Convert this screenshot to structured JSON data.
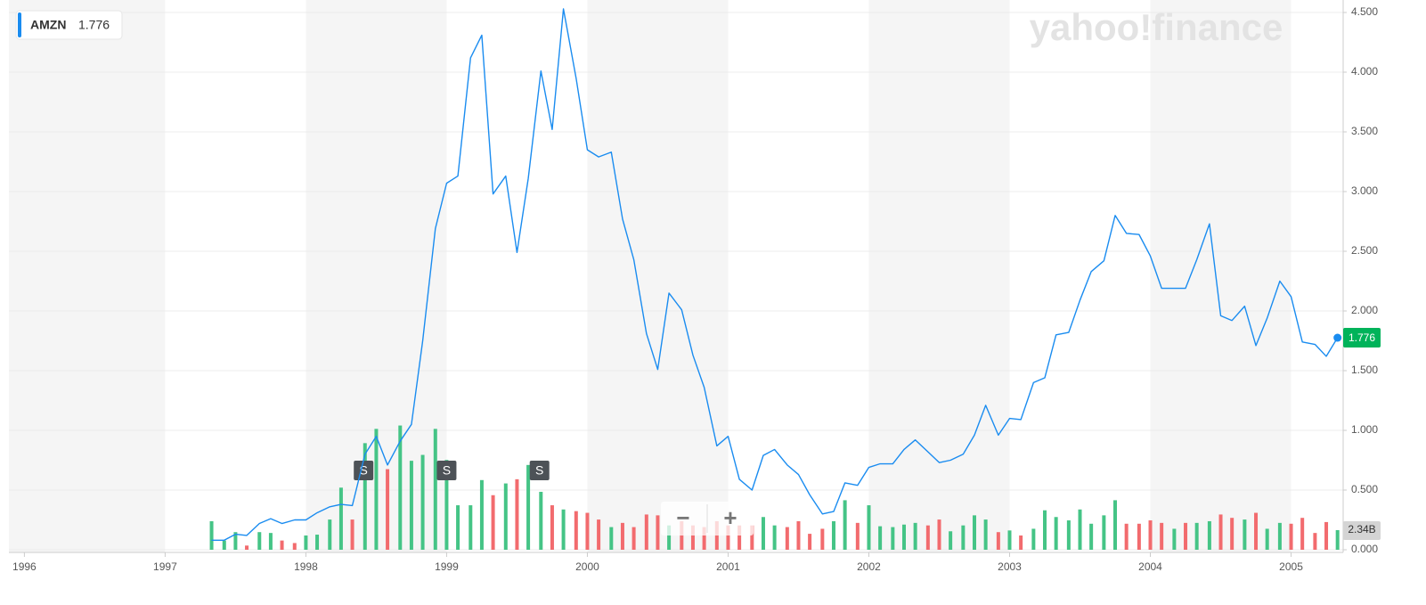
{
  "chart_data": {
    "type": "line",
    "x": [
      1997.33,
      1997.42,
      1997.5,
      1997.58,
      1997.67,
      1997.75,
      1997.83,
      1997.92,
      1998,
      1998.08,
      1998.17,
      1998.25,
      1998.33,
      1998.42,
      1998.5,
      1998.58,
      1998.67,
      1998.75,
      1998.83,
      1998.92,
      1999,
      1999.08,
      1999.17,
      1999.25,
      1999.33,
      1999.42,
      1999.5,
      1999.58,
      1999.67,
      1999.75,
      1999.83,
      1999.92,
      2000,
      2000.08,
      2000.17,
      2000.25,
      2000.33,
      2000.42,
      2000.5,
      2000.58,
      2000.67,
      2000.75,
      2000.83,
      2000.92,
      2001,
      2001.08,
      2001.17,
      2001.25,
      2001.33,
      2001.42,
      2001.5,
      2001.58,
      2001.67,
      2001.75,
      2001.83,
      2001.92,
      2002,
      2002.08,
      2002.17,
      2002.25,
      2002.33,
      2002.42,
      2002.5,
      2002.58,
      2002.67,
      2002.75,
      2002.83,
      2002.92,
      2003,
      2003.08,
      2003.17,
      2003.25,
      2003.33,
      2003.42,
      2003.5,
      2003.58,
      2003.67,
      2003.75,
      2003.83,
      2003.92,
      2004,
      2004.08,
      2004.17,
      2004.25,
      2004.33,
      2004.42,
      2004.5,
      2004.58,
      2004.67,
      2004.75,
      2004.83,
      2004.92,
      2005,
      2005.08,
      2005.17,
      2005.25,
      2005.33
    ],
    "series": [
      {
        "name": "AMZN",
        "color": "#1a8cf0",
        "values": [
          0.08,
          0.08,
          0.13,
          0.12,
          0.22,
          0.26,
          0.22,
          0.25,
          0.25,
          0.31,
          0.36,
          0.38,
          0.37,
          0.8,
          0.95,
          0.71,
          0.91,
          1.05,
          1.75,
          2.69,
          3.07,
          3.13,
          4.12,
          4.31,
          2.98,
          3.13,
          2.49,
          3.11,
          4.01,
          3.52,
          4.53,
          3.95,
          3.35,
          3.29,
          3.33,
          2.77,
          2.43,
          1.81,
          1.51,
          2.15,
          2.01,
          1.63,
          1.36,
          0.87,
          0.95,
          0.59,
          0.5,
          0.79,
          0.84,
          0.71,
          0.63,
          0.46,
          0.3,
          0.32,
          0.56,
          0.54,
          0.69,
          0.72,
          0.72,
          0.84,
          0.92,
          0.82,
          0.73,
          0.75,
          0.8,
          0.96,
          1.21,
          0.96,
          1.1,
          1.09,
          1.4,
          1.44,
          1.8,
          1.82,
          2.09,
          2.33,
          2.42,
          2.8,
          2.65,
          2.64,
          2.46,
          2.19,
          2.19,
          2.19,
          2.43,
          2.73,
          1.96,
          1.92,
          2.04,
          1.71,
          1.94,
          2.25,
          2.12,
          1.74,
          1.72,
          1.62,
          1.776
        ]
      }
    ],
    "volume": {
      "vlim": [
        0,
        64
      ],
      "values": [
        3.4,
        1.1,
        2.1,
        0.5,
        2.1,
        2.0,
        1.1,
        0.8,
        1.7,
        1.8,
        3.6,
        7.4,
        3.6,
        12.7,
        14.4,
        9.6,
        14.8,
        10.6,
        11.3,
        14.4,
        10.7,
        5.3,
        5.3,
        8.3,
        6.5,
        7.9,
        8.4,
        10.1,
        6.9,
        5.3,
        4.8,
        4.6,
        4.4,
        3.6,
        2.7,
        3.2,
        2.7,
        4.2,
        4.1,
        2.9,
        3.4,
        2.9,
        2.7,
        3.4,
        2.9,
        2.9,
        2.9,
        3.9,
        2.9,
        2.7,
        3.4,
        1.9,
        2.5,
        3.4,
        5.9,
        3.2,
        5.3,
        2.8,
        2.7,
        3.0,
        3.2,
        2.9,
        3.6,
        2.2,
        2.9,
        4.1,
        3.6,
        2.1,
        2.3,
        1.7,
        2.5,
        4.7,
        3.9,
        3.5,
        4.8,
        3.1,
        4.1,
        5.9,
        3.1,
        3.1,
        3.5,
        3.2,
        2.5,
        3.2,
        3.2,
        3.4,
        4.2,
        3.8,
        3.6,
        4.4,
        2.5,
        3.2,
        3.1,
        3.8,
        2.0,
        3.3,
        2.34
      ],
      "colors": [
        "#45c486",
        "#45c486",
        "#45c486",
        "#f26b6e",
        "#45c486",
        "#45c486",
        "#f26b6e",
        "#f26b6e",
        "#45c486",
        "#45c486",
        "#45c486",
        "#45c486",
        "#f26b6e",
        "#45c486",
        "#45c486",
        "#f26b6e",
        "#45c486",
        "#45c486",
        "#45c486",
        "#45c486",
        "#45c486",
        "#45c486",
        "#45c486",
        "#45c486",
        "#f26b6e",
        "#45c486",
        "#f26b6e",
        "#45c486",
        "#45c486",
        "#f26b6e",
        "#45c486",
        "#f26b6e",
        "#f26b6e",
        "#f26b6e",
        "#45c486",
        "#f26b6e",
        "#f26b6e",
        "#f26b6e",
        "#f26b6e",
        "#45c486",
        "#f26b6e",
        "#f26b6e",
        "#f26b6e",
        "#f26b6e",
        "#f26b6e",
        "#f26b6e",
        "#f26b6e",
        "#45c486",
        "#45c486",
        "#f26b6e",
        "#f26b6e",
        "#f26b6e",
        "#f26b6e",
        "#45c486",
        "#45c486",
        "#f26b6e",
        "#45c486",
        "#45c486",
        "#45c486",
        "#45c486",
        "#45c486",
        "#f26b6e",
        "#f26b6e",
        "#45c486",
        "#45c486",
        "#45c486",
        "#45c486",
        "#f26b6e",
        "#45c486",
        "#f26b6e",
        "#45c486",
        "#45c486",
        "#45c486",
        "#45c486",
        "#45c486",
        "#45c486",
        "#45c486",
        "#45c486",
        "#f26b6e",
        "#f26b6e",
        "#f26b6e",
        "#f26b6e",
        "#45c486",
        "#f26b6e",
        "#45c486",
        "#45c486",
        "#f26b6e",
        "#f26b6e",
        "#45c486",
        "#f26b6e",
        "#45c486",
        "#45c486",
        "#f26b6e",
        "#f26b6e",
        "#f26b6e",
        "#f26b6e",
        "#45c486"
      ],
      "badge": {
        "value": 2.34,
        "label": "2.34B"
      }
    },
    "xlim": [
      1995.89,
      2005.37
    ],
    "xticks": [
      1996,
      1997,
      1998,
      1999,
      2000,
      2001,
      2002,
      2003,
      2004,
      2005
    ],
    "ylim": [
      0,
      4.5
    ],
    "yticks": [
      {
        "value": 0,
        "label": "0.000"
      },
      {
        "value": 0.5,
        "label": "0.500"
      },
      {
        "value": 1,
        "label": "1.000"
      },
      {
        "value": 1.5,
        "label": "1.500"
      },
      {
        "value": 2,
        "label": "2.000"
      },
      {
        "value": 2.5,
        "label": "2.500"
      },
      {
        "value": 3,
        "label": "3.000"
      },
      {
        "value": 3.5,
        "label": "3.500"
      },
      {
        "value": 4,
        "label": "4.000"
      },
      {
        "value": 4.5,
        "label": "4.500"
      }
    ],
    "grid": true,
    "price_badge_color": "#00b35a",
    "events": [
      {
        "x": 1998.41,
        "label": "S"
      },
      {
        "x": 1999,
        "label": "S"
      },
      {
        "x": 1999.66,
        "label": "S"
      }
    ],
    "watermark": "yahoo!finance",
    "zoom": [
      "−",
      "+"
    ]
  }
}
